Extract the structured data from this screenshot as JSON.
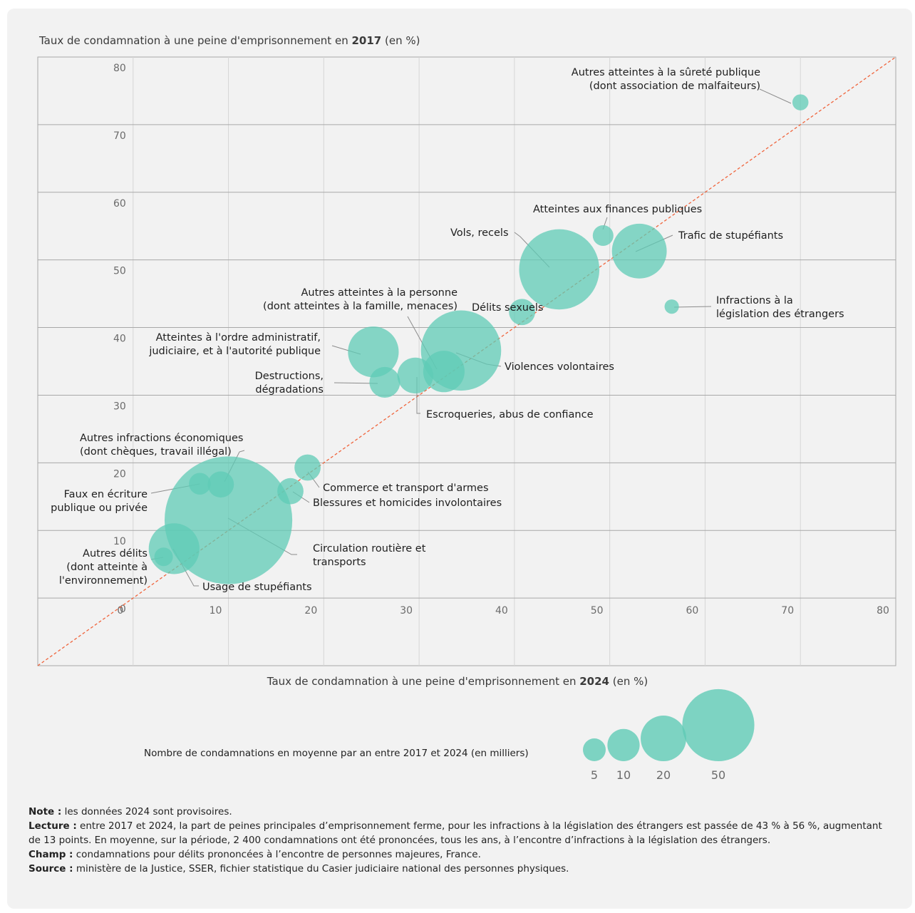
{
  "y_title": {
    "pre": "Taux de condamnation à une peine d'emprisonnement en ",
    "year": "2017",
    "post": " (en %)"
  },
  "x_title": {
    "pre": "Taux de condamnation à une peine d'emprisonnement en ",
    "year": "2024",
    "post": " (en %)"
  },
  "colors": {
    "bubble": "#5fcbb5",
    "diagonal": "#f0643c",
    "grid": "#a8a8a8",
    "grid_light": "#d6d6d6",
    "card": "#f2f2f2"
  },
  "chart_data": {
    "type": "scatter",
    "variant": "bubble",
    "xlim": [
      -10,
      80
    ],
    "ylim": [
      -10,
      80
    ],
    "x_ticks": [
      0,
      10,
      20,
      30,
      40,
      50,
      60,
      70,
      80
    ],
    "y_ticks": [
      0,
      10,
      20,
      30,
      40,
      50,
      60,
      70,
      80
    ],
    "x_tick_labels": [
      "0",
      "10",
      "20",
      "30",
      "40",
      "50",
      "60",
      "70",
      "80"
    ],
    "y_tick_labels": [
      "0",
      "10",
      "20",
      "30",
      "40",
      "50",
      "60",
      "70",
      "80"
    ],
    "reference_line": "y = x",
    "grid": true,
    "points": [
      {
        "label": [
          "Autres atteintes à la sûreté publique",
          "(dont association de malfaiteurs)"
        ],
        "x": 70,
        "y": 73.3,
        "size": 3
      },
      {
        "label": [
          "Atteintes aux finances publiques"
        ],
        "x": 49.3,
        "y": 53.6,
        "size": 5
      },
      {
        "label": [
          "Trafic de stupéfiants"
        ],
        "x": 53.1,
        "y": 51.3,
        "size": 35
      },
      {
        "label": [
          "Vols, recels"
        ],
        "x": 44.7,
        "y": 48.6,
        "size": 75
      },
      {
        "label": [
          "Infractions à la",
          "législation des étrangers"
        ],
        "x": 56.5,
        "y": 43.1,
        "size": 2.4
      },
      {
        "label": [
          "Délits sexuels"
        ],
        "x": 40.8,
        "y": 42.3,
        "size": 8
      },
      {
        "label": [
          "Autres atteintes à la personne",
          "(dont atteintes à la famille, menaces)"
        ],
        "x": 32.6,
        "y": 33.5,
        "size": 20
      },
      {
        "label": [
          "Atteintes à l'ordre administratif,",
          "judiciaire, et à l'autorité publique"
        ],
        "x": 25.2,
        "y": 36.4,
        "size": 30
      },
      {
        "label": [
          "Destructions,",
          "dégradations"
        ],
        "x": 26.4,
        "y": 31.9,
        "size": 11
      },
      {
        "label": [
          "Violences volontaires"
        ],
        "x": 34.4,
        "y": 36.6,
        "size": 75
      },
      {
        "label": [
          "Escroqueries, abus de confiance"
        ],
        "x": 29.6,
        "y": 32.9,
        "size": 15
      },
      {
        "label": [
          "Autres infractions économiques",
          "(dont chèques, travail illégal)"
        ],
        "x": 9.2,
        "y": 16.8,
        "size": 8
      },
      {
        "label": [
          "Faux en écriture",
          "publique ou privée"
        ],
        "x": 7,
        "y": 16.9,
        "size": 5.5
      },
      {
        "label": [
          "Commerce et transport d'armes"
        ],
        "x": 18.3,
        "y": 19.3,
        "size": 8
      },
      {
        "label": [
          "Blessures et homicides involontaires"
        ],
        "x": 16.5,
        "y": 15.8,
        "size": 8
      },
      {
        "label": [
          "Circulation routière et",
          "transports"
        ],
        "x": 10,
        "y": 11.5,
        "size": 190
      },
      {
        "label": [
          "Usage de stupéfiants"
        ],
        "x": 4.3,
        "y": 7.3,
        "size": 30
      },
      {
        "label": [
          "Autres délits",
          "(dont atteinte à",
          "l'environnement)"
        ],
        "x": 3.2,
        "y": 6.1,
        "size": 4
      }
    ],
    "size_legend": {
      "title": "Nombre de condamnations en moyenne par an entre 2017 et 2024 (en milliers)",
      "values": [
        5,
        10,
        20,
        50
      ],
      "labels": [
        "5",
        "10",
        "20",
        "50"
      ]
    }
  },
  "notes": {
    "note_label": "Note :",
    "note_text": " les données 2024 sont provisoires.",
    "lecture_label": "Lecture :",
    "lecture_text": " entre 2017 et 2024, la part de peines principales d’emprisonnement ferme, pour les infractions à la législation des étrangers est passée de 43 % à 56 %, augmentant de 13 points. En moyenne, sur la période, 2 400 condamnations ont été prononcées, tous les ans, à l’encontre d’infractions à la législation des étrangers.",
    "champ_label": "Champ :",
    "champ_text": " condamnations pour délits prononcées à l’encontre de personnes majeures, France.",
    "source_label": "Source :",
    "source_text": " ministère de la Justice, SSER, fichier statistique du Casier judiciaire national des personnes physiques."
  }
}
